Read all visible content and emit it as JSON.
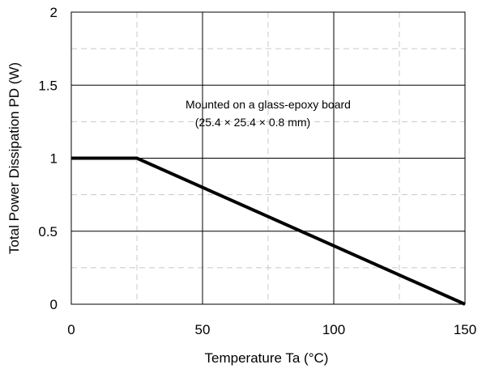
{
  "chart_data": {
    "type": "line",
    "xlabel": "Temperature Ta (°C)",
    "ylabel": "Total Power Dissipation PD (W)",
    "xlim": [
      0,
      150
    ],
    "ylim": [
      0,
      2
    ],
    "x_ticks": [
      0,
      50,
      100,
      150
    ],
    "x_tick_labels": [
      "0",
      "50",
      "100",
      "150"
    ],
    "y_ticks": [
      0,
      0.5,
      1,
      1.5,
      2
    ],
    "y_tick_labels": [
      "0",
      "0.5",
      "1",
      "1.5",
      "2"
    ],
    "x_minor_grid": [
      25,
      75,
      125
    ],
    "y_minor_grid": [
      0.25,
      0.75,
      1.25,
      1.75
    ],
    "grid": true,
    "legend": "none",
    "series": [
      {
        "x": [
          0,
          25,
          150
        ],
        "y": [
          1,
          1,
          0
        ],
        "color": "#000000"
      }
    ],
    "annotations": [
      {
        "text": "Mounted on a glass-epoxy board",
        "x": 75,
        "y": 1.34
      },
      {
        "text": "(25.4 × 25.4 × 0.8 mm)",
        "x": 75,
        "y": 1.22
      }
    ]
  }
}
